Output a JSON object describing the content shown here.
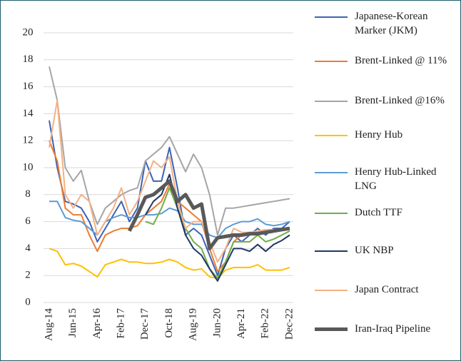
{
  "chart_data": {
    "type": "line",
    "categories": [
      "Aug-14",
      null,
      null,
      "Jun-15",
      null,
      null,
      "Apr-16",
      null,
      null,
      "Feb-17",
      null,
      null,
      "Dec-17",
      null,
      null,
      "Oct-18",
      null,
      null,
      "Aug-19",
      null,
      null,
      "Jun-20",
      null,
      null,
      "Apr-21",
      null,
      null,
      "Feb-22",
      null,
      null,
      "Dec-22"
    ],
    "ylim": [
      0,
      20
    ],
    "yticks": [
      0,
      2,
      4,
      6,
      8,
      10,
      12,
      14,
      16,
      18,
      20
    ],
    "grid": true,
    "series": [
      {
        "name": "Japanese-Korean Marker (JKM)",
        "color": "#3b63b6",
        "values": [
          13.5,
          10,
          7.5,
          7.3,
          7,
          6,
          4.5,
          5.5,
          6.5,
          7.5,
          6,
          7,
          10.5,
          9,
          9,
          11.5,
          8.5,
          5,
          5.5,
          5,
          3.5,
          2,
          4,
          5,
          4.5,
          5,
          5.5,
          5,
          5.5,
          5.5,
          6
        ]
      },
      {
        "name": "Brent-Linked @ 11%",
        "color": "#ed7d31",
        "values": [
          12,
          10.5,
          7,
          6.5,
          6.5,
          5,
          3.8,
          5,
          5.3,
          5.5,
          5.5,
          5.7,
          6.5,
          7,
          7.5,
          8.8,
          7.5,
          7,
          6.5,
          6,
          4,
          2.3,
          3,
          4.5,
          5,
          5.2,
          5.2,
          5.3,
          5.4,
          5.4,
          5.5
        ]
      },
      {
        "name": "Brent-Linked @16%",
        "color": "#a5a5a5",
        "values": [
          17.5,
          15,
          10,
          9,
          9.8,
          7.5,
          5.8,
          7,
          7.5,
          8,
          8.3,
          8.5,
          10.5,
          11,
          11.5,
          12.3,
          11,
          9.7,
          11,
          10,
          8,
          5,
          7,
          7,
          7.1,
          7.2,
          7.3,
          7.4,
          7.5,
          7.6,
          7.7
        ]
      },
      {
        "name": "Henry Hub",
        "color": "#ffc000",
        "values": [
          4,
          3.8,
          2.8,
          2.9,
          2.7,
          2.3,
          1.9,
          2.8,
          3,
          3.2,
          3,
          3,
          2.9,
          2.9,
          3,
          3.2,
          3,
          2.6,
          2.4,
          2.5,
          1.9,
          1.8,
          2.4,
          2.6,
          2.6,
          2.6,
          2.8,
          2.4,
          2.4,
          2.4,
          2.6
        ]
      },
      {
        "name": "Henry Hub-Linked LNG",
        "color": "#5b9bd5",
        "values": [
          7.5,
          7.5,
          6.3,
          6.1,
          6,
          5.5,
          5,
          6,
          6.3,
          6.5,
          6.3,
          6.3,
          6.5,
          6.5,
          6.6,
          7,
          6.8,
          6,
          5.8,
          5.8,
          5,
          4.8,
          5.5,
          5.8,
          6,
          6,
          6.2,
          5.8,
          5.7,
          5.8,
          6
        ]
      },
      {
        "name": "Dutch TTF",
        "color": "#70ad47",
        "values": [
          null,
          null,
          null,
          null,
          null,
          null,
          null,
          null,
          null,
          null,
          null,
          null,
          6,
          5.8,
          7,
          8.5,
          7,
          5.5,
          4.5,
          4,
          2.5,
          1.8,
          3,
          4.5,
          4.5,
          4.5,
          5,
          4.5,
          4.7,
          5,
          5.3
        ]
      },
      {
        "name": "UK NBP",
        "color": "#1f3864",
        "values": [
          null,
          null,
          null,
          null,
          null,
          null,
          null,
          null,
          null,
          null,
          null,
          null,
          6.5,
          7.5,
          8,
          9.5,
          7,
          5,
          4,
          3.5,
          2.5,
          1.6,
          2.8,
          4,
          4,
          3.8,
          4.3,
          3.8,
          4.3,
          4.6,
          5
        ]
      },
      {
        "name": "Japan Contract",
        "color": "#f4b183",
        "values": [
          11.5,
          15,
          8,
          7,
          8,
          7.5,
          5,
          6,
          7,
          8.5,
          6.5,
          7.5,
          9,
          10.5,
          10,
          10.8,
          7.5,
          5.5,
          6,
          6,
          4.5,
          3,
          4,
          5.5,
          5.2,
          5.2,
          5.3,
          5.4,
          5.4,
          5.4,
          5.5
        ]
      },
      {
        "name": "Iran-Iraq Pipeline",
        "color": "#595959",
        "values": [
          null,
          null,
          null,
          null,
          null,
          null,
          null,
          null,
          null,
          null,
          5.3,
          6.5,
          7.8,
          8,
          8.5,
          9,
          7.5,
          8,
          7,
          7.3,
          4,
          4.8,
          4.9,
          5,
          5,
          5.1,
          5.1,
          5.2,
          5.3,
          5.4,
          5.5
        ]
      }
    ]
  }
}
